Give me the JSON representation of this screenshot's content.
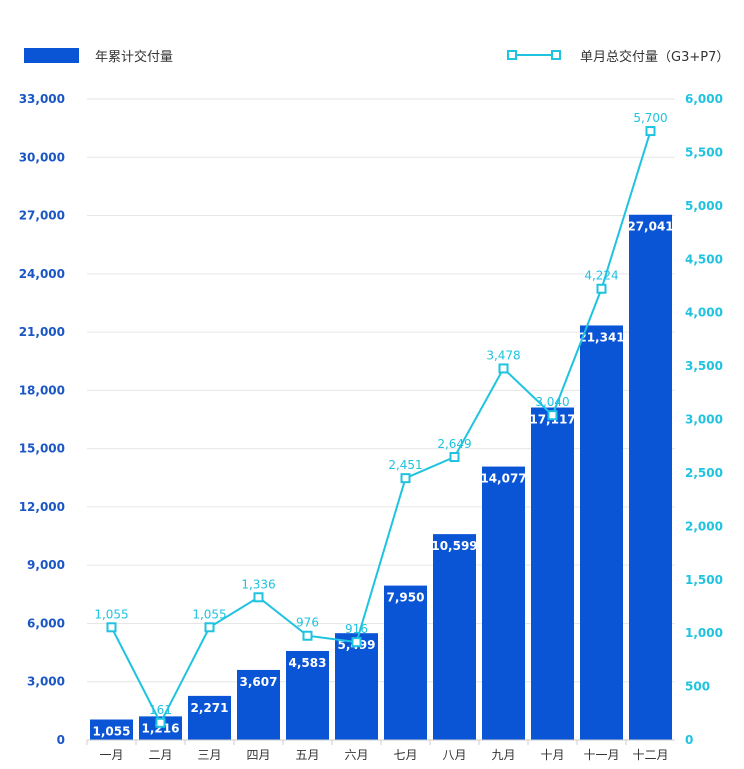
{
  "chart_data": {
    "type": "bar+line",
    "categories": [
      "一月",
      "二月",
      "三月",
      "四月",
      "五月",
      "六月",
      "七月",
      "八月",
      "九月",
      "十月",
      "十一月",
      "十二月"
    ],
    "series": [
      {
        "name": "年累计交付量",
        "type": "bar",
        "axis": "left",
        "color": "#0a55d6",
        "values": [
          1055,
          1216,
          2271,
          3607,
          4583,
          5499,
          7950,
          10599,
          14077,
          17117,
          21341,
          27041
        ],
        "labels": [
          "1,055",
          "1,216",
          "2,271",
          "3,607",
          "4,583",
          "5,499",
          "7,950",
          "10,599",
          "14,077",
          "17,117",
          "21,341",
          "27,041"
        ]
      },
      {
        "name": "单月总交付量（G3+P7）",
        "type": "line",
        "axis": "right",
        "color": "#1fc3e0",
        "values": [
          1055,
          161,
          1055,
          1336,
          976,
          916,
          2451,
          2649,
          3478,
          3040,
          4224,
          5700
        ],
        "labels": [
          "1,055",
          "161",
          "1,055",
          "1,336",
          "976",
          "916",
          "2,451",
          "2,649",
          "3,478",
          "3,040",
          "4,224",
          "5,700"
        ]
      }
    ],
    "y_left": {
      "range": [
        0,
        33000
      ],
      "ticks": [
        "0",
        "3,000",
        "6,000",
        "9,000",
        "12,000",
        "15,000",
        "18,000",
        "21,000",
        "24,000",
        "27,000",
        "30,000",
        "33,000"
      ]
    },
    "y_right": {
      "range": [
        0,
        6000
      ],
      "ticks": [
        "0",
        "500",
        "1,000",
        "1,500",
        "2,000",
        "2,500",
        "3,000",
        "3,500",
        "4,000",
        "4,500",
        "5,000",
        "5,500",
        "6,000"
      ]
    },
    "grid": true,
    "legend_position": "top"
  }
}
